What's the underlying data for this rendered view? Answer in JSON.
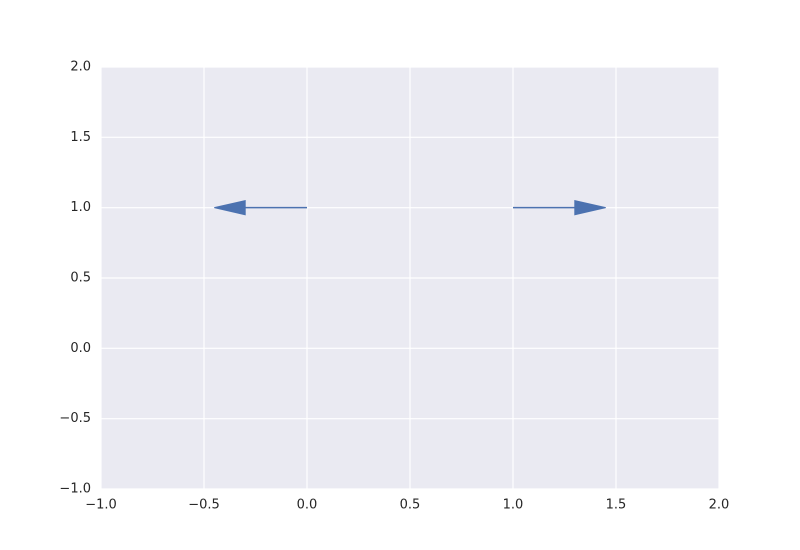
{
  "chart_data": {
    "type": "arrow",
    "color": "#4c72b0",
    "background": "#eaeaf2",
    "grid": true,
    "arrows": [
      {
        "x": 0,
        "y": 1,
        "dx": -0.3,
        "dy": 0
      },
      {
        "x": 1,
        "y": 1,
        "dx": 0.3,
        "dy": 0
      }
    ],
    "head_width": 0.1,
    "head_length": 0.15,
    "xlim": [
      -1,
      2
    ],
    "ylim": [
      -1,
      2
    ],
    "xticks": [
      {
        "value": -1,
        "label": "−1.0"
      },
      {
        "value": -0.5,
        "label": "−0.5"
      },
      {
        "value": 0,
        "label": "0.0"
      },
      0.5,
      {
        "value": 1,
        "label": "1.0"
      },
      1.5,
      {
        "value": 2,
        "label": "2.0"
      }
    ],
    "yticks": [
      {
        "value": -1,
        "label": "−1.0"
      },
      {
        "value": -0.5,
        "label": "−0.5"
      },
      {
        "value": 0,
        "label": "0.0"
      },
      0.5,
      {
        "value": 1,
        "label": "1.0"
      },
      1.5,
      {
        "value": 2,
        "label": "2.0"
      }
    ]
  }
}
